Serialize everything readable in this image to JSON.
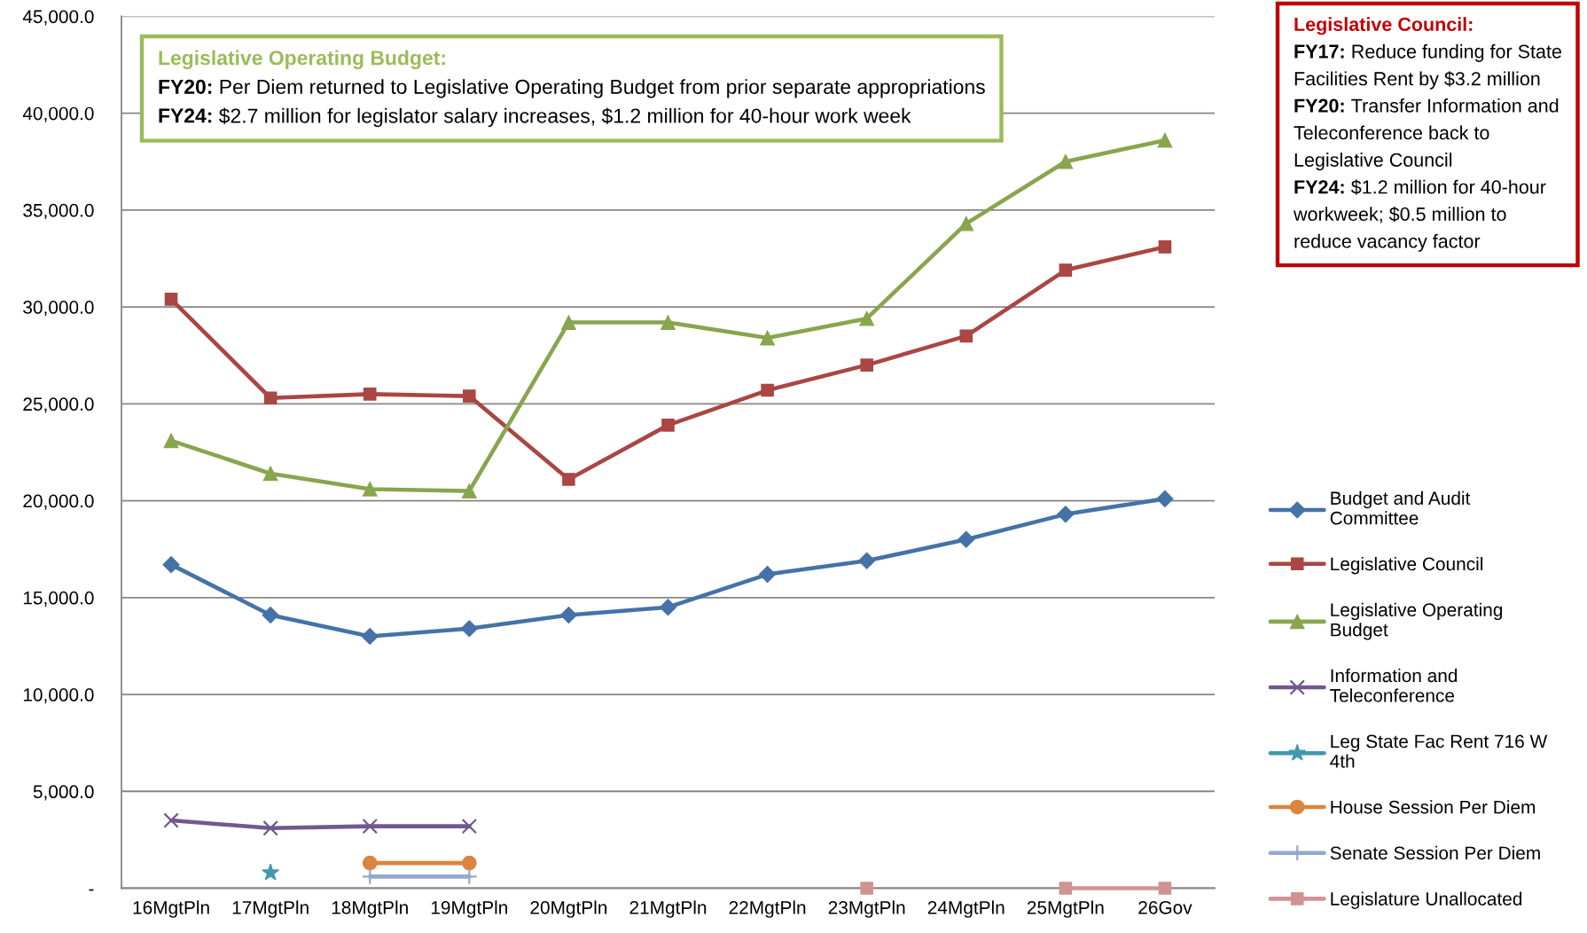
{
  "chart_data": {
    "type": "line",
    "categories": [
      "16MgtPln",
      "17MgtPln",
      "18MgtPln",
      "19MgtPln",
      "20MgtPln",
      "21MgtPln",
      "22MgtPln",
      "23MgtPln",
      "24MgtPln",
      "25MgtPln",
      "26Gov"
    ],
    "ylim": [
      0,
      45000
    ],
    "yticks": [
      {
        "value": 0,
        "label": "-"
      },
      {
        "value": 5000,
        "label": "5,000.0"
      },
      {
        "value": 10000,
        "label": "10,000.0"
      },
      {
        "value": 15000,
        "label": "15,000.0"
      },
      {
        "value": 20000,
        "label": "20,000.0"
      },
      {
        "value": 25000,
        "label": "25,000.0"
      },
      {
        "value": 30000,
        "label": "30,000.0"
      },
      {
        "value": 35000,
        "label": "35,000.0"
      },
      {
        "value": 40000,
        "label": "40,000.0"
      },
      {
        "value": 45000,
        "label": "45,000.0"
      }
    ],
    "grid": "y",
    "legend": "right",
    "annotations": [
      "Legislative Operating Budget:\nFY20: Per Diem returned to Legislative Operating Budget from prior separate appropriations\nFY24: $2.7 million for legislator salary increases, $1.2 million for 40-hour work week",
      "Legislative Council:\nFY17: Reduce funding for State Facilities Rent by $3.2 million\nFY20: Transfer Information and Teleconference back to Legislative Council\nFY24: $1.2 million for 40-hour workweek; $0.5 million to reduce vacancy factor"
    ],
    "series": [
      {
        "name": "Budget and Audit Committee",
        "color": "#4572a7",
        "marker": "diamond",
        "values": [
          16700,
          14100,
          13000,
          13400,
          14100,
          14500,
          16200,
          16900,
          18000,
          19300,
          20100
        ]
      },
      {
        "name": "Legislative Council",
        "color": "#aa4643",
        "marker": "square",
        "values": [
          30400,
          25300,
          25500,
          25400,
          21100,
          23900,
          25700,
          27000,
          28500,
          31900,
          33100
        ]
      },
      {
        "name": "Legislative Operating Budget",
        "color": "#89a54e",
        "marker": "triangle",
        "values": [
          23100,
          21400,
          20600,
          20500,
          29200,
          29200,
          28400,
          29400,
          34300,
          37500,
          38600
        ]
      },
      {
        "name": "Information and Teleconference",
        "color": "#71588f",
        "marker": "cross",
        "values": [
          3500,
          3100,
          3200,
          3200,
          null,
          null,
          null,
          null,
          null,
          null,
          null
        ]
      },
      {
        "name": "Leg State Fac Rent 716 W 4th",
        "color": "#4198af",
        "marker": "star",
        "values": [
          null,
          800,
          null,
          null,
          null,
          null,
          null,
          null,
          null,
          null,
          null
        ]
      },
      {
        "name": "House Session Per Diem",
        "color": "#db843d",
        "marker": "circle",
        "values": [
          null,
          null,
          1300,
          1300,
          null,
          null,
          null,
          null,
          null,
          null,
          null
        ]
      },
      {
        "name": "Senate Session Per Diem",
        "color": "#93a9cf",
        "marker": "plus",
        "values": [
          null,
          null,
          600,
          600,
          null,
          null,
          null,
          null,
          null,
          null,
          null
        ]
      },
      {
        "name": "Legislature Unallocated",
        "color": "#d19392",
        "marker": "square",
        "values": [
          null,
          null,
          null,
          null,
          null,
          null,
          null,
          0,
          null,
          0,
          0
        ]
      }
    ]
  }
}
